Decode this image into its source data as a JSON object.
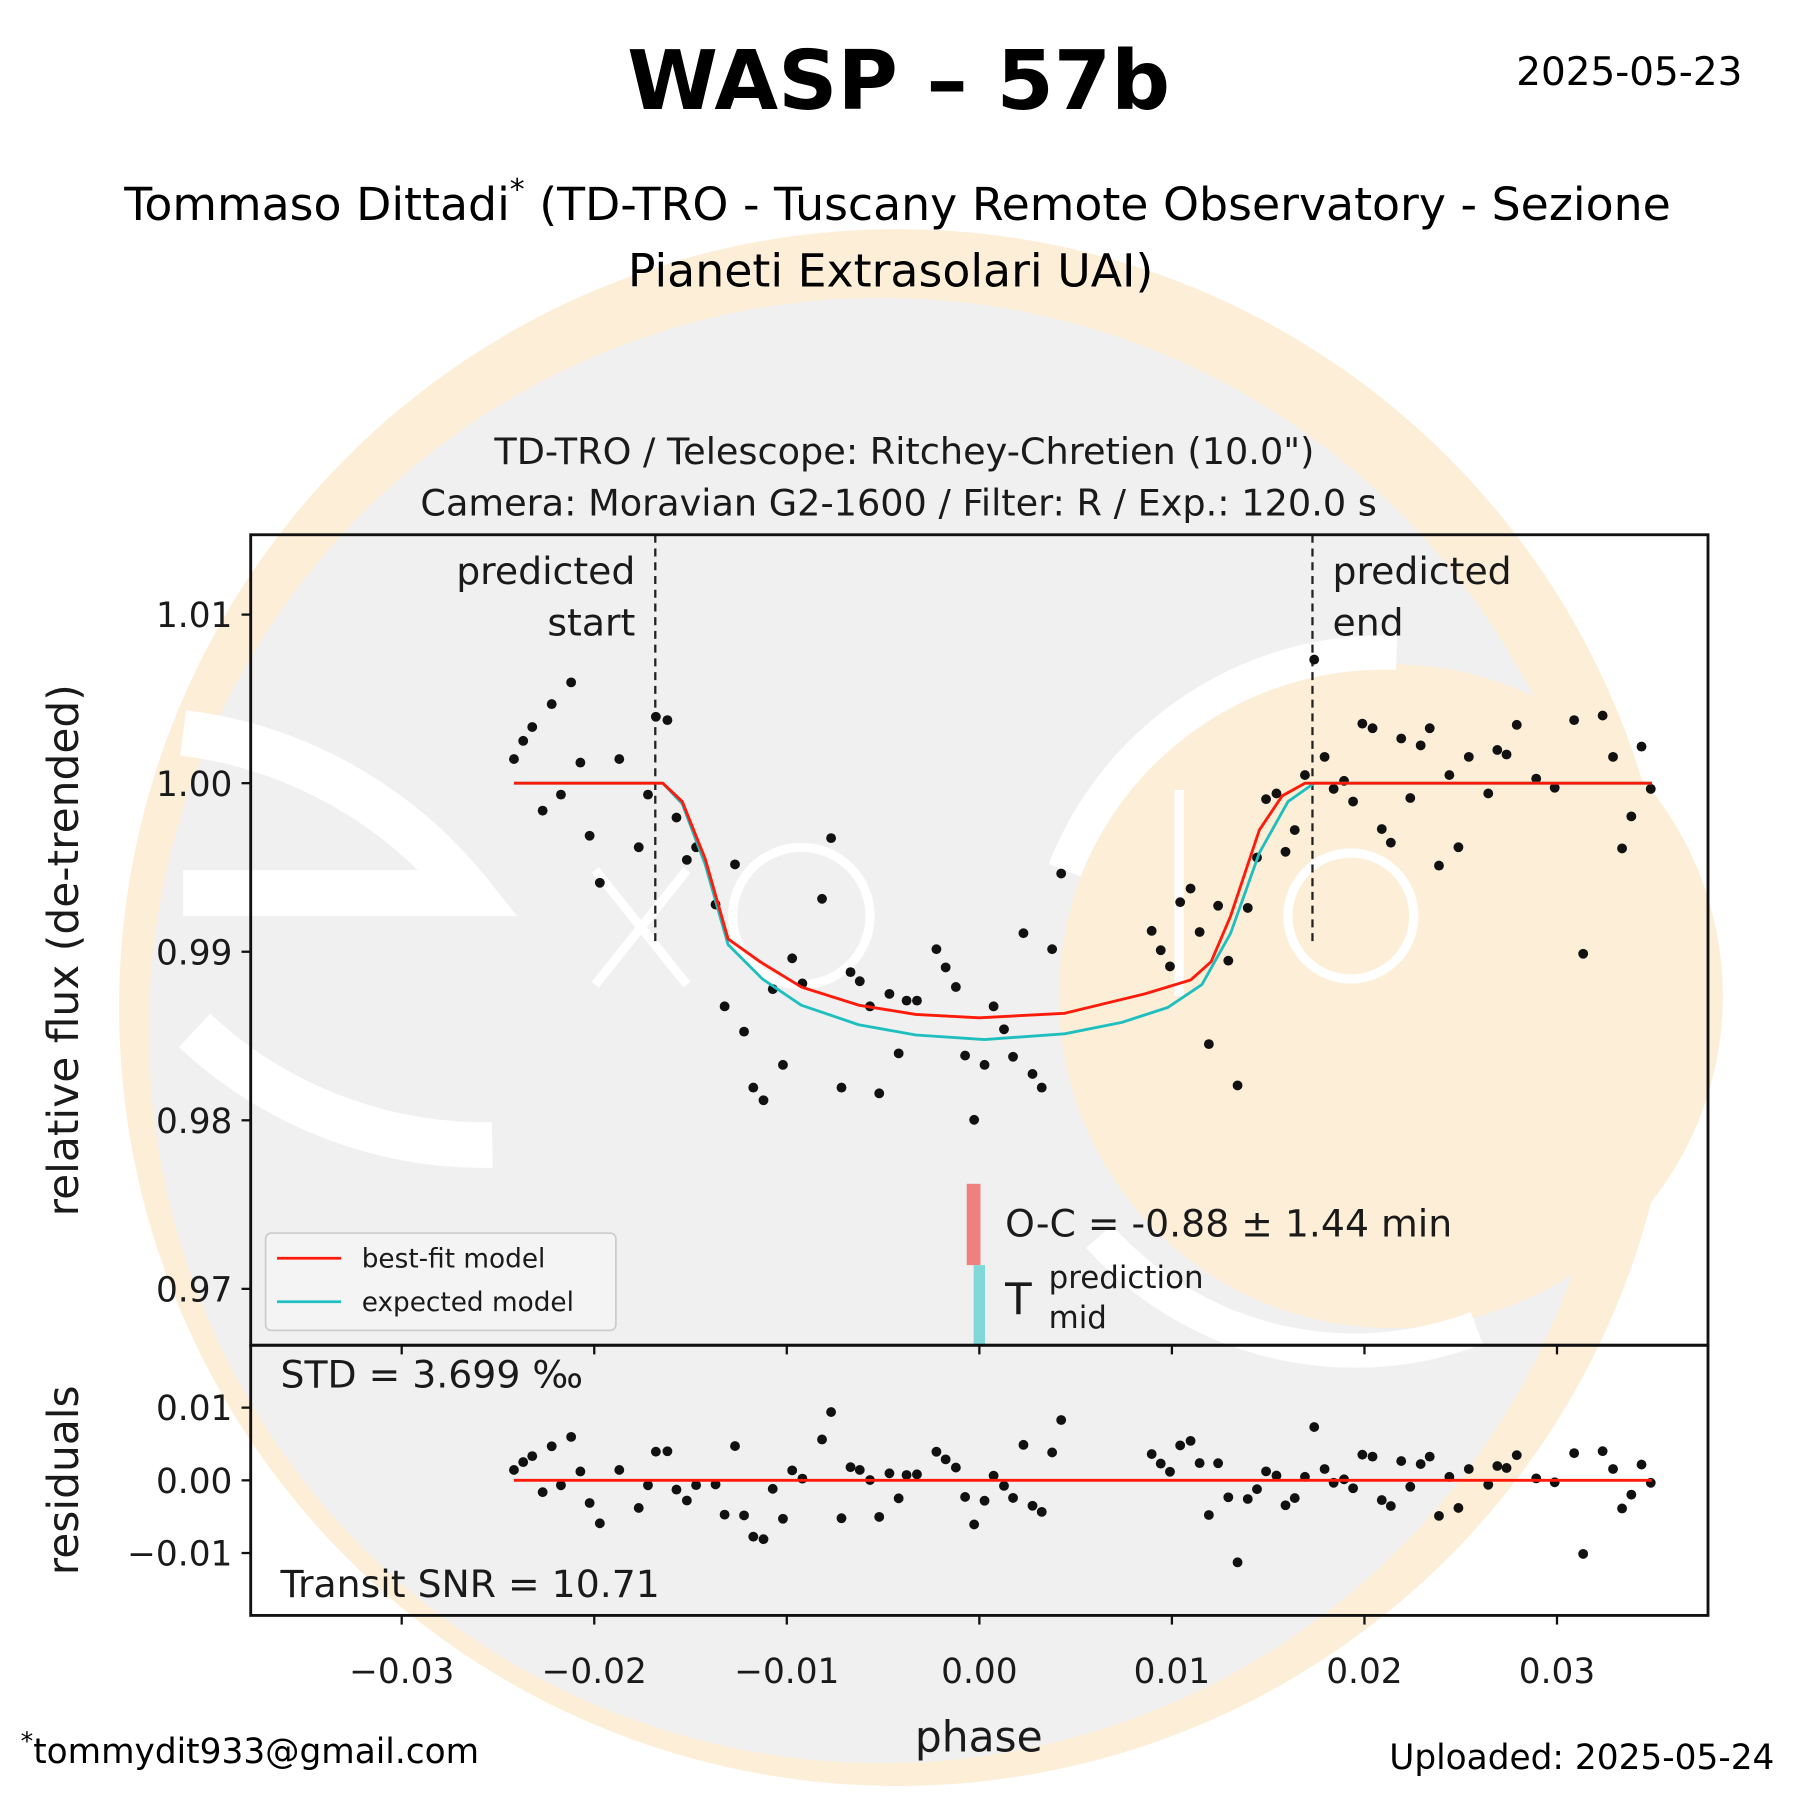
{
  "header": {
    "title": "WASP – 57b",
    "date": "2025-05-23",
    "observer_name": "Tommaso Dittadi",
    "observer_mark": "*",
    "observer_affiliation_line1": " (TD-TRO - Tuscany Remote Observatory - Sezione",
    "observer_affiliation_line2": "Pianeti Extrasolari UAI)"
  },
  "footer": {
    "email_mark": "*",
    "email": "tommydit933@gmail.com",
    "uploaded": "Uploaded: 2025-05-24"
  },
  "colors": {
    "best_fit": "#ff1a0a",
    "expected": "#1fbfbf",
    "oc_bar": "#f08080",
    "tmid_bar": "#80d8d8",
    "points": "#111111",
    "background_circle": "#fdeed8",
    "inner_circle": "#f0f0f0"
  },
  "chart_data": {
    "type": "scatter",
    "title_line1": "TD-TRO / Telescope: Ritchey-Chretien (10.0\")",
    "title_line2": "Camera: Moravian G2-1600 / Filter: R / Exp.: 120.0 s",
    "xlabel": "phase",
    "ylabel": "relative flux (de-trended)",
    "residual_ylabel": "residuals",
    "xlim": [
      -0.0378,
      0.0378
    ],
    "ylim": [
      0.9667,
      1.0147
    ],
    "residual_ylim": [
      -0.0184,
      0.0187
    ],
    "grid": false,
    "legend_placement": "lower-left",
    "x_ticks": [
      {
        "value": -0.03,
        "label": "−0.03"
      },
      {
        "value": -0.02,
        "label": "−0.02"
      },
      {
        "value": -0.01,
        "label": "−0.01"
      },
      {
        "value": 0.0,
        "label": "0.00"
      },
      {
        "value": 0.01,
        "label": "0.01"
      },
      {
        "value": 0.02,
        "label": "0.02"
      },
      {
        "value": 0.03,
        "label": "0.03"
      }
    ],
    "y_ticks": [
      {
        "value": 0.97,
        "label": "0.97"
      },
      {
        "value": 0.98,
        "label": "0.98"
      },
      {
        "value": 0.99,
        "label": "0.99"
      },
      {
        "value": 1.0,
        "label": "1.00"
      },
      {
        "value": 1.01,
        "label": "1.01"
      }
    ],
    "residual_y_ticks": [
      {
        "value": -0.01,
        "label": "−0.01"
      },
      {
        "value": 0.0,
        "label": "0.00"
      },
      {
        "value": 0.01,
        "label": "0.01"
      }
    ],
    "data_points": {
      "x": [
        -0.02417,
        -0.02369,
        -0.02322,
        -0.02268,
        -0.02221,
        -0.02173,
        -0.0212,
        -0.02072,
        -0.02024,
        -0.01971,
        -0.0187,
        -0.01769,
        -0.01721,
        -0.0168,
        -0.0162,
        -0.01573,
        -0.01519,
        -0.01471,
        -0.0137,
        -0.01323,
        -0.01269,
        -0.01222,
        -0.01174,
        -0.01121,
        -0.01073,
        -0.0102,
        -0.00972,
        -0.00919,
        -0.00817,
        -0.0077,
        -0.00716,
        -0.00669,
        -0.00621,
        -0.00568,
        -0.0052,
        -0.00467,
        -0.00419,
        -0.00378,
        -0.00324,
        -0.00223,
        -0.00175,
        -0.00122,
        -0.00074,
        -0.00027,
        0.00027,
        0.00074,
        0.00128,
        0.00175,
        0.00229,
        0.00276,
        0.00324,
        0.00378,
        0.00425,
        0.00895,
        0.00942,
        0.0099,
        0.01043,
        0.01097,
        0.01144,
        0.01192,
        0.0124,
        0.01293,
        0.01341,
        0.01394,
        0.01442,
        0.01489,
        0.01543,
        0.0159,
        0.01638,
        0.01691,
        0.01739,
        0.01793,
        0.0184,
        0.01894,
        0.01941,
        0.01989,
        0.02042,
        0.0209,
        0.02137,
        0.02191,
        0.02238,
        0.02292,
        0.02339,
        0.02387,
        0.02441,
        0.02488,
        0.02542,
        0.02643,
        0.0269,
        0.02738,
        0.02791,
        0.02892,
        0.02988,
        0.03089,
        0.03136,
        0.03237,
        0.03291,
        0.03338,
        0.03386,
        0.03439,
        0.03487
      ],
      "y": [
        1.00143,
        1.00251,
        1.00333,
        0.99837,
        1.00469,
        0.99932,
        1.00598,
        1.00122,
        0.99688,
        0.99409,
        1.00143,
        0.9962,
        0.99932,
        1.00394,
        1.00374,
        0.99796,
        0.99545,
        0.9962,
        0.9928,
        0.98676,
        0.99518,
        0.98526,
        0.98194,
        0.98119,
        0.98778,
        0.98329,
        0.98961,
        0.98812,
        0.99314,
        0.99674,
        0.98194,
        0.98879,
        0.98825,
        0.98676,
        0.9816,
        0.9875,
        0.98397,
        0.9871,
        0.9871,
        0.99015,
        0.98907,
        0.98791,
        0.98384,
        0.98003,
        0.98329,
        0.98676,
        0.9854,
        0.98377,
        0.9911,
        0.98275,
        0.98194,
        0.99015,
        0.99464,
        0.99124,
        0.99009,
        0.98913,
        0.99294,
        0.99375,
        0.99117,
        0.98452,
        0.99273,
        0.98947,
        0.98207,
        0.9926,
        0.99559,
        0.99905,
        0.99939,
        0.99593,
        0.99722,
        1.00048,
        1.00733,
        1.00156,
        0.99966,
        1.00014,
        0.99891,
        1.00353,
        1.00326,
        0.99728,
        0.99647,
        1.00265,
        0.99912,
        1.00224,
        1.00326,
        0.99511,
        1.00048,
        0.9962,
        1.00156,
        0.99939,
        1.00197,
        1.0017,
        1.00346,
        1.00027,
        0.99973,
        1.00374,
        0.98988,
        1.00401,
        1.00156,
        0.99613,
        0.99803,
        1.00217,
        0.99966
      ]
    },
    "series": [
      {
        "name": "best-fit model",
        "x": [
          -0.02417,
          -0.01644,
          -0.01543,
          -0.01424,
          -0.01305,
          -0.01139,
          -0.00925,
          -0.00627,
          -0.0033,
          0.0,
          0.00443,
          0.00859,
          0.01097,
          0.01204,
          0.01305,
          0.01454,
          0.01573,
          0.01692,
          0.03493
        ],
        "y": [
          1.0,
          1.0,
          0.99891,
          0.99552,
          0.99076,
          0.98941,
          0.98791,
          0.98683,
          0.98628,
          0.98608,
          0.98635,
          0.9875,
          0.98832,
          0.98941,
          0.99212,
          0.99722,
          0.99925,
          1.0,
          1.0
        ]
      },
      {
        "name": "expected model",
        "x": [
          -0.02417,
          -0.01644,
          -0.01543,
          -0.01424,
          -0.01305,
          -0.01127,
          -0.00925,
          -0.00627,
          -0.0033,
          0.00027,
          0.00443,
          0.0074,
          0.00978,
          0.01156,
          0.01305,
          0.01454,
          0.01603,
          0.01739,
          0.03493
        ],
        "y": [
          1.0,
          1.0,
          0.99878,
          0.99518,
          0.99042,
          0.98839,
          0.98683,
          0.98567,
          0.98506,
          0.98479,
          0.98513,
          0.98581,
          0.98669,
          0.98805,
          0.9911,
          0.99586,
          0.99891,
          1.0,
          1.0
        ]
      }
    ],
    "residual_zero_line_x": [
      -0.02417,
      0.03493
    ],
    "predicted_start": {
      "x": -0.01683,
      "label_line1": "predicted",
      "label_line2": "start"
    },
    "predicted_end": {
      "x": 0.0173,
      "label_line1": "predicted",
      "label_line2": "end"
    },
    "predicted_lines_ymin": 0.99063,
    "oc_annotation": {
      "text": "O-C = -0.88 ± 1.44 min",
      "tmid_symbol": "T",
      "tmid_superscript": "prediction",
      "tmid_subscript": "mid",
      "oc_minutes": -0.88,
      "oc_error_minutes": 1.44
    },
    "std_text": "STD = 3.699 ‰",
    "snr_text": "Transit SNR = 10.71"
  }
}
